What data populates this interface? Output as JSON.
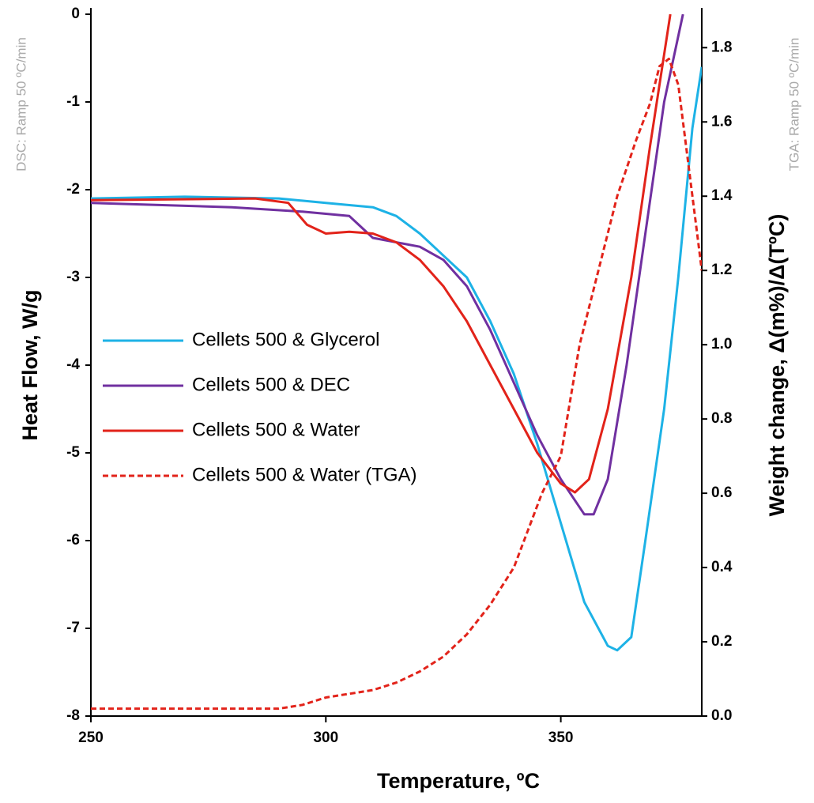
{
  "chart_data": {
    "type": "line",
    "xlabel": "Temperature, ºC",
    "ylabel": "Heat Flow, W/g",
    "y2label": "Weight change, Δ(m%)/Δ(TºC)",
    "left_note": "DSC: Ramp 50 ºC/min",
    "right_note": "TGA: Ramp 50 ºC/min",
    "xlim": [
      250,
      380
    ],
    "xticks": [
      250,
      300,
      350
    ],
    "ylim": [
      -8,
      0
    ],
    "yticks": [
      0,
      -1,
      -2,
      -3,
      -4,
      -5,
      -6,
      -7,
      -8
    ],
    "y2lim": [
      0,
      1.89
    ],
    "y2ticks": [
      {
        "value": 0,
        "label": "0.0"
      },
      0.2,
      0.4,
      0.6,
      0.8,
      {
        "value": 1,
        "label": "1.0"
      },
      1.2,
      1.4,
      1.6,
      1.8
    ],
    "series": [
      {
        "name": "Cellets 500 & Glycerol",
        "color": "#1db2e6",
        "style": "solid",
        "x": [
          250,
          270,
          290,
          300,
          310,
          315,
          320,
          325,
          330,
          335,
          340,
          345,
          350,
          355,
          360,
          362,
          365,
          368,
          372,
          375,
          378,
          380
        ],
        "values": [
          -2.1,
          -2.08,
          -2.1,
          -2.15,
          -2.2,
          -2.3,
          -2.5,
          -2.75,
          -3.0,
          -3.5,
          -4.1,
          -4.9,
          -5.8,
          -6.7,
          -7.2,
          -7.25,
          -7.1,
          -6.0,
          -4.5,
          -3.0,
          -1.3,
          -0.6
        ]
      },
      {
        "name": "Cellets 500 & DEC",
        "color": "#7030a0",
        "style": "solid",
        "x": [
          250,
          280,
          295,
          305,
          307,
          310,
          320,
          325,
          330,
          335,
          340,
          345,
          350,
          355,
          357,
          360,
          364,
          368,
          372,
          376
        ],
        "values": [
          -2.15,
          -2.2,
          -2.25,
          -2.3,
          -2.4,
          -2.55,
          -2.65,
          -2.8,
          -3.1,
          -3.6,
          -4.2,
          -4.8,
          -5.3,
          -5.7,
          -5.7,
          -5.3,
          -4.0,
          -2.5,
          -1.0,
          0
        ]
      },
      {
        "name": "Cellets 500 & Water",
        "color": "#e2231a",
        "style": "solid",
        "x": [
          250,
          285,
          292,
          296,
          300,
          305,
          310,
          315,
          320,
          325,
          330,
          335,
          340,
          345,
          350,
          353,
          356,
          360,
          365,
          369,
          373.3
        ],
        "values": [
          -2.12,
          -2.1,
          -2.15,
          -2.4,
          -2.5,
          -2.48,
          -2.5,
          -2.6,
          -2.8,
          -3.1,
          -3.5,
          -4.0,
          -4.5,
          -5.0,
          -5.35,
          -5.45,
          -5.3,
          -4.5,
          -3.0,
          -1.5,
          0
        ]
      },
      {
        "name": "Cellets 500 & Water (TGA)",
        "color": "#e2231a",
        "style": "dashed",
        "axis": "y2",
        "x": [
          250,
          270,
          290,
          295,
          300,
          305,
          310,
          315,
          320,
          325,
          330,
          335,
          340,
          343,
          346,
          350,
          352,
          354,
          358,
          362,
          366,
          369,
          371,
          373,
          375,
          377,
          379,
          380
        ],
        "values": [
          0.02,
          0.02,
          0.02,
          0.03,
          0.05,
          0.06,
          0.07,
          0.09,
          0.12,
          0.16,
          0.22,
          0.3,
          0.4,
          0.5,
          0.6,
          0.7,
          0.85,
          1.0,
          1.2,
          1.4,
          1.55,
          1.65,
          1.75,
          1.77,
          1.7,
          1.5,
          1.3,
          1.2
        ]
      }
    ]
  }
}
